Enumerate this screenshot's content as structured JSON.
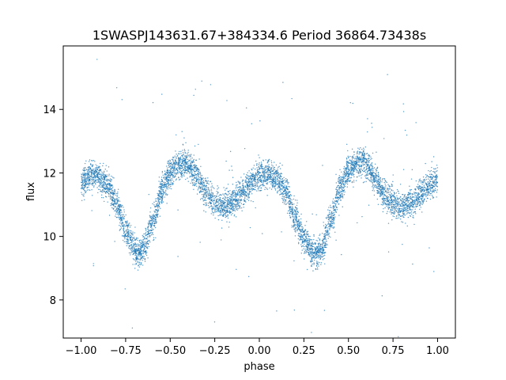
{
  "chart_data": {
    "type": "scatter",
    "title": "1SWASPJ143631.67+384334.6 Period 36864.73438s",
    "xlabel": "phase",
    "ylabel": "flux",
    "xlim": [
      -1.1,
      1.1
    ],
    "ylim": [
      6.8,
      16.0
    ],
    "xticks": [
      -1.0,
      -0.75,
      -0.5,
      -0.25,
      0.0,
      0.25,
      0.5,
      0.75,
      1.0
    ],
    "xtick_labels": [
      "−1.00",
      "−0.75",
      "−0.50",
      "−0.25",
      "0.00",
      "0.25",
      "0.50",
      "0.75",
      "1.00"
    ],
    "yticks": [
      8,
      10,
      12,
      14
    ],
    "ytick_labels": [
      "8",
      "10",
      "12",
      "14"
    ],
    "grid": false,
    "point_color": "#1f77b4",
    "curve_profile": {
      "phase": [
        -1.0,
        -0.95,
        -0.9,
        -0.85,
        -0.8,
        -0.75,
        -0.7,
        -0.67,
        -0.65,
        -0.6,
        -0.55,
        -0.5,
        -0.45,
        -0.42,
        -0.4,
        -0.35,
        -0.3,
        -0.25,
        -0.2,
        -0.15,
        -0.1,
        -0.05,
        0.0,
        0.05,
        0.1,
        0.15,
        0.2,
        0.25,
        0.3,
        0.33,
        0.35,
        0.4,
        0.45,
        0.5,
        0.55,
        0.58,
        0.6,
        0.65,
        0.7,
        0.75,
        0.8,
        0.85,
        0.9,
        0.95,
        1.0
      ],
      "flux": [
        11.7,
        11.95,
        11.9,
        11.6,
        11.0,
        10.2,
        9.6,
        9.5,
        9.6,
        10.4,
        11.4,
        12.0,
        12.25,
        12.3,
        12.25,
        11.9,
        11.4,
        11.1,
        10.95,
        11.05,
        11.35,
        11.7,
        11.9,
        11.95,
        11.8,
        11.4,
        10.6,
        9.9,
        9.5,
        9.45,
        9.6,
        10.5,
        11.5,
        12.05,
        12.3,
        12.35,
        12.25,
        11.8,
        11.3,
        11.05,
        10.95,
        11.05,
        11.3,
        11.6,
        11.75
      ]
    },
    "scatter_band_width": 0.45,
    "outlier_fraction": 0.02
  }
}
